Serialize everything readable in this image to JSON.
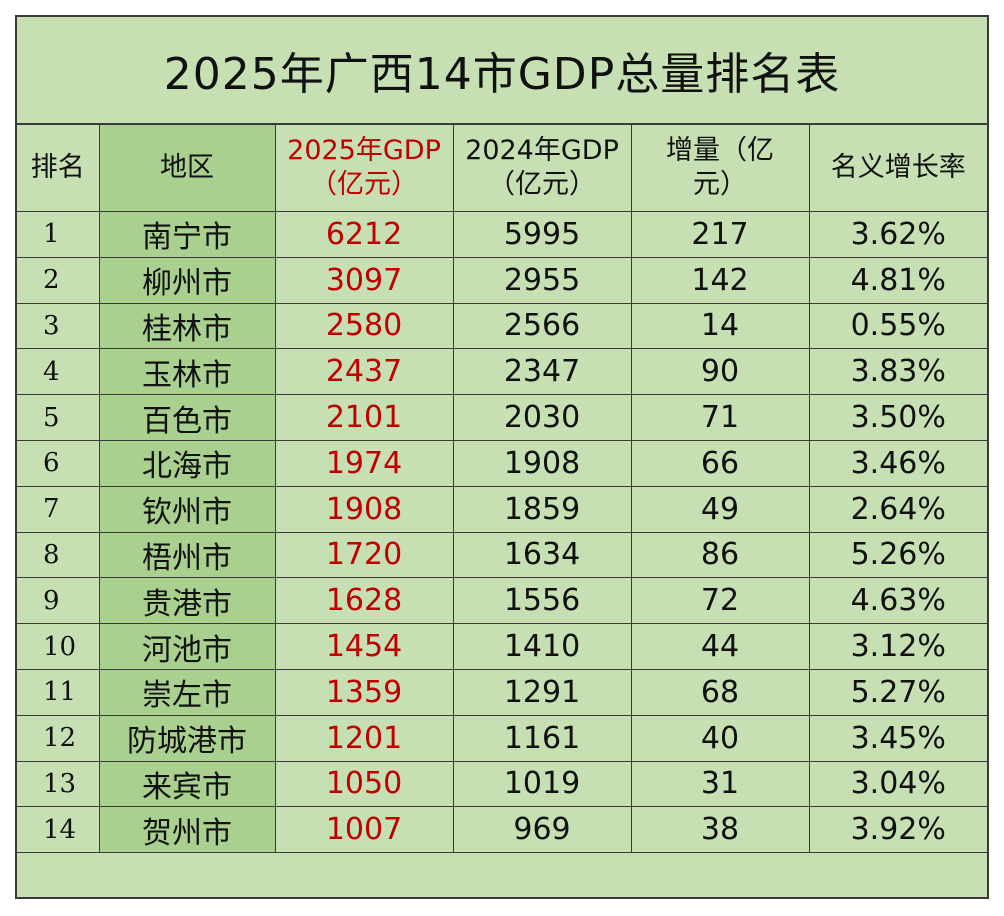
{
  "title": "2025年广西14市GDP总量排名表",
  "colors": {
    "background": "#c6e0b4",
    "region_column": "#a9d08e",
    "highlight_text": "#c00000",
    "border": "#3a3a3a"
  },
  "headers": {
    "rank": "排名",
    "region": "地区",
    "gdp2025_line1": "2025年GDP",
    "gdp2025_line2": "（亿元）",
    "gdp2024_line1": "2024年GDP",
    "gdp2024_line2": "（亿元）",
    "increase_line1": "增量（亿",
    "increase_line2": "元）",
    "growth": "名义增长率"
  },
  "rows": [
    {
      "rank": "1",
      "region": "南宁市",
      "gdp2025": "6212",
      "gdp2024": "5995",
      "increase": "217",
      "growth": "3.62%"
    },
    {
      "rank": "2",
      "region": "柳州市",
      "gdp2025": "3097",
      "gdp2024": "2955",
      "increase": "142",
      "growth": "4.81%"
    },
    {
      "rank": "3",
      "region": "桂林市",
      "gdp2025": "2580",
      "gdp2024": "2566",
      "increase": "14",
      "growth": "0.55%"
    },
    {
      "rank": "4",
      "region": "玉林市",
      "gdp2025": "2437",
      "gdp2024": "2347",
      "increase": "90",
      "growth": "3.83%"
    },
    {
      "rank": "5",
      "region": "百色市",
      "gdp2025": "2101",
      "gdp2024": "2030",
      "increase": "71",
      "growth": "3.50%"
    },
    {
      "rank": "6",
      "region": "北海市",
      "gdp2025": "1974",
      "gdp2024": "1908",
      "increase": "66",
      "growth": "3.46%"
    },
    {
      "rank": "7",
      "region": "钦州市",
      "gdp2025": "1908",
      "gdp2024": "1859",
      "increase": "49",
      "growth": "2.64%"
    },
    {
      "rank": "8",
      "region": "梧州市",
      "gdp2025": "1720",
      "gdp2024": "1634",
      "increase": "86",
      "growth": "5.26%"
    },
    {
      "rank": "9",
      "region": "贵港市",
      "gdp2025": "1628",
      "gdp2024": "1556",
      "increase": "72",
      "growth": "4.63%"
    },
    {
      "rank": "10",
      "region": "河池市",
      "gdp2025": "1454",
      "gdp2024": "1410",
      "increase": "44",
      "growth": "3.12%"
    },
    {
      "rank": "11",
      "region": "崇左市",
      "gdp2025": "1359",
      "gdp2024": "1291",
      "increase": "68",
      "growth": "5.27%"
    },
    {
      "rank": "12",
      "region": "防城港市",
      "gdp2025": "1201",
      "gdp2024": "1161",
      "increase": "40",
      "growth": "3.45%"
    },
    {
      "rank": "13",
      "region": "来宾市",
      "gdp2025": "1050",
      "gdp2024": "1019",
      "increase": "31",
      "growth": "3.04%"
    },
    {
      "rank": "14",
      "region": "贺州市",
      "gdp2025": "1007",
      "gdp2024": "969",
      "increase": "38",
      "growth": "3.92%"
    }
  ]
}
